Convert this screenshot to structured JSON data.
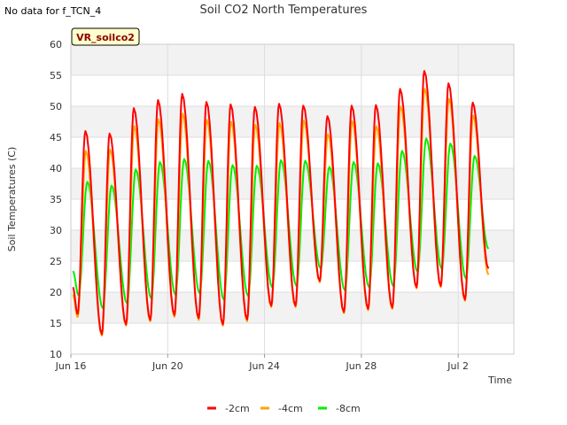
{
  "note": "No data for f_TCN_4",
  "chart_data": {
    "type": "line",
    "title": "Soil CO2 North Temperatures",
    "xlabel": "Time",
    "ylabel": "Soil Temperatures (C)",
    "badge": "VR_soilco2",
    "ylim": [
      10,
      60
    ],
    "yticks": [
      10,
      15,
      20,
      25,
      30,
      35,
      40,
      45,
      50,
      55,
      60
    ],
    "xlim": [
      0,
      18.3
    ],
    "xticks": [
      {
        "label": "Jun 16",
        "day": 0
      },
      {
        "label": "Jun 20",
        "day": 4
      },
      {
        "label": "Jun 24",
        "day": 8
      },
      {
        "label": "Jun 28",
        "day": 12
      },
      {
        "label": "Jul 2",
        "day": 16
      }
    ],
    "grid": true,
    "legend_position": "bottom",
    "colors": {
      "-2cm": "#ff0000",
      "-4cm": "#ffa500",
      "-8cm": "#00ee00"
    },
    "series": [
      {
        "name": "-2cm",
        "color": "#ff0000",
        "daily_min": [
          16.5,
          13.2,
          14.8,
          15.5,
          16.3,
          15.8,
          14.8,
          15.6,
          17.8,
          17.8,
          21.8,
          16.8,
          17.3,
          17.5,
          20.8,
          21.0,
          18.8
        ],
        "daily_max": [
          46.0,
          45.6,
          49.7,
          51.0,
          52.0,
          50.7,
          50.3,
          49.9,
          50.4,
          50.1,
          48.4,
          50.1,
          50.2,
          52.8,
          55.7,
          53.7,
          50.6
        ],
        "start": 20.8,
        "end": 23.8
      },
      {
        "name": "-4cm",
        "color": "#ffa500",
        "daily_min": [
          16.0,
          13.0,
          14.6,
          15.3,
          16.0,
          15.5,
          14.6,
          15.3,
          17.6,
          17.6,
          21.6,
          16.6,
          17.1,
          17.3,
          20.6,
          20.8,
          18.6
        ],
        "daily_max": [
          42.8,
          43.0,
          46.8,
          47.9,
          48.8,
          47.8,
          47.5,
          47.0,
          47.3,
          47.7,
          45.5,
          47.6,
          46.8,
          50.0,
          52.8,
          51.2,
          48.5
        ],
        "start": 19.6,
        "end": 22.8
      },
      {
        "name": "-8cm",
        "color": "#00ee00",
        "daily_min": [
          19.5,
          17.4,
          18.2,
          19.0,
          19.6,
          19.8,
          18.8,
          19.4,
          20.8,
          21.0,
          23.8,
          20.3,
          20.8,
          21.0,
          23.3,
          23.8,
          22.2
        ],
        "daily_max": [
          37.8,
          37.2,
          39.8,
          41.0,
          41.5,
          41.2,
          40.5,
          40.4,
          41.3,
          41.2,
          40.2,
          41.0,
          40.8,
          42.8,
          44.8,
          44.0,
          42.0
        ],
        "start": 23.4,
        "end": 27.0
      }
    ]
  }
}
